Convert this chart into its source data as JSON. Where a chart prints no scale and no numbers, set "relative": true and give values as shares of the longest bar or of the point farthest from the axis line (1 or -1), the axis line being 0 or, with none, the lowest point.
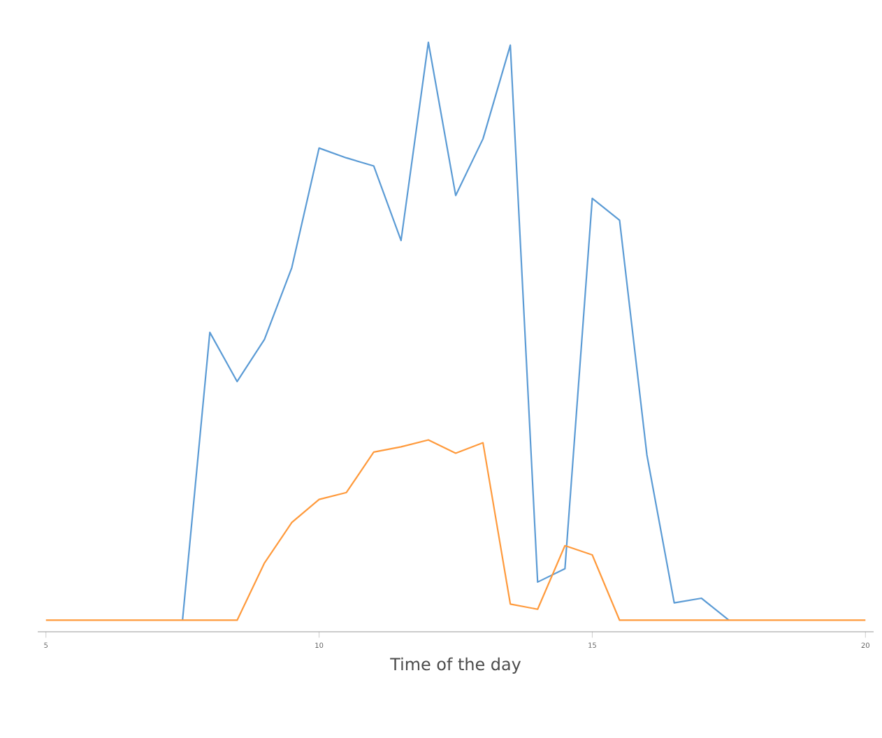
{
  "chart_data": {
    "type": "line",
    "relative": true,
    "xlabel": "Time of the day",
    "x": [
      5,
      5.5,
      6,
      6.5,
      7,
      7.5,
      8,
      8.5,
      9,
      9.5,
      10,
      10.5,
      11,
      11.5,
      12,
      12.5,
      13,
      13.5,
      14,
      14.5,
      15,
      15.5,
      16,
      16.5,
      17,
      17.5,
      18,
      18.5,
      19,
      19.5,
      20
    ],
    "xlim": [
      4.85,
      20.15
    ],
    "xticks": [
      5,
      10,
      15,
      20
    ],
    "grid": false,
    "marker": "none",
    "line_style": "solid",
    "series": [
      {
        "color": "#5b9bd5",
        "values": [
          null,
          null,
          null,
          null,
          null,
          0,
          0.498,
          0.413,
          0.486,
          0.61,
          0.817,
          0.8,
          0.786,
          0.657,
          1.0,
          0.735,
          0.833,
          0.995,
          0.066,
          0.089,
          0.73,
          0.692,
          0.286,
          0.03,
          0.038,
          0,
          null,
          null,
          null,
          null,
          null
        ]
      },
      {
        "color": "#ff9a3c",
        "values": [
          0,
          0,
          0,
          0,
          0,
          0,
          0,
          0,
          0.099,
          0.169,
          0.209,
          0.221,
          0.291,
          0.3,
          0.312,
          0.289,
          0.307,
          0.028,
          0.019,
          0.129,
          0.113,
          0,
          0,
          0,
          0,
          0,
          0,
          0,
          0,
          0,
          0
        ]
      }
    ]
  }
}
